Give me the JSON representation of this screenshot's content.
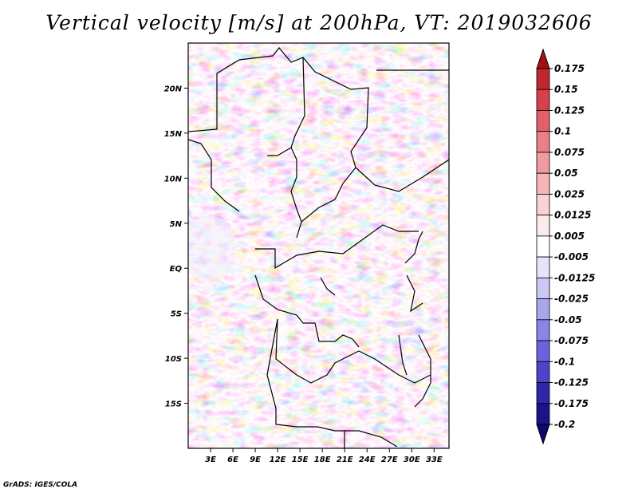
{
  "title": "Vertical velocity [m/s] at 200hPa, VT: 2019032606",
  "credit": "GrADS: IGES/COLA",
  "map": {
    "lat_labels": [
      "20N",
      "15N",
      "10N",
      "5N",
      "EQ",
      "5S",
      "10S",
      "15S"
    ],
    "lat_values": [
      20,
      15,
      10,
      5,
      0,
      -5,
      -10,
      -15
    ],
    "lon_labels": [
      "3E",
      "6E",
      "9E",
      "12E",
      "15E",
      "18E",
      "21E",
      "24E",
      "27E",
      "30E",
      "33E"
    ],
    "lon_values": [
      3,
      6,
      9,
      12,
      15,
      18,
      21,
      24,
      27,
      30,
      33
    ],
    "lon_range": [
      0,
      35
    ],
    "lat_range": [
      -20,
      25
    ]
  },
  "colorbar": {
    "levels": [
      "0.175",
      "0.15",
      "0.125",
      "0.1",
      "0.075",
      "0.05",
      "0.025",
      "0.0125",
      "0.005",
      "-0.005",
      "-0.0125",
      "-0.025",
      "-0.05",
      "-0.075",
      "-0.1",
      "-0.125",
      "-0.175",
      "-0.2"
    ],
    "colors": [
      "#a50f15",
      "#c0272d",
      "#d7404a",
      "#e3606a",
      "#eb7f86",
      "#f19ba0",
      "#f6b6b9",
      "#fad2d4",
      "#fdebec",
      "#ffffff",
      "#e6e4fb",
      "#cbc8f5",
      "#aaa6ee",
      "#8a84e5",
      "#6a63dc",
      "#4b43c9",
      "#2e28a8",
      "#1a138a",
      "#0d0870"
    ]
  }
}
